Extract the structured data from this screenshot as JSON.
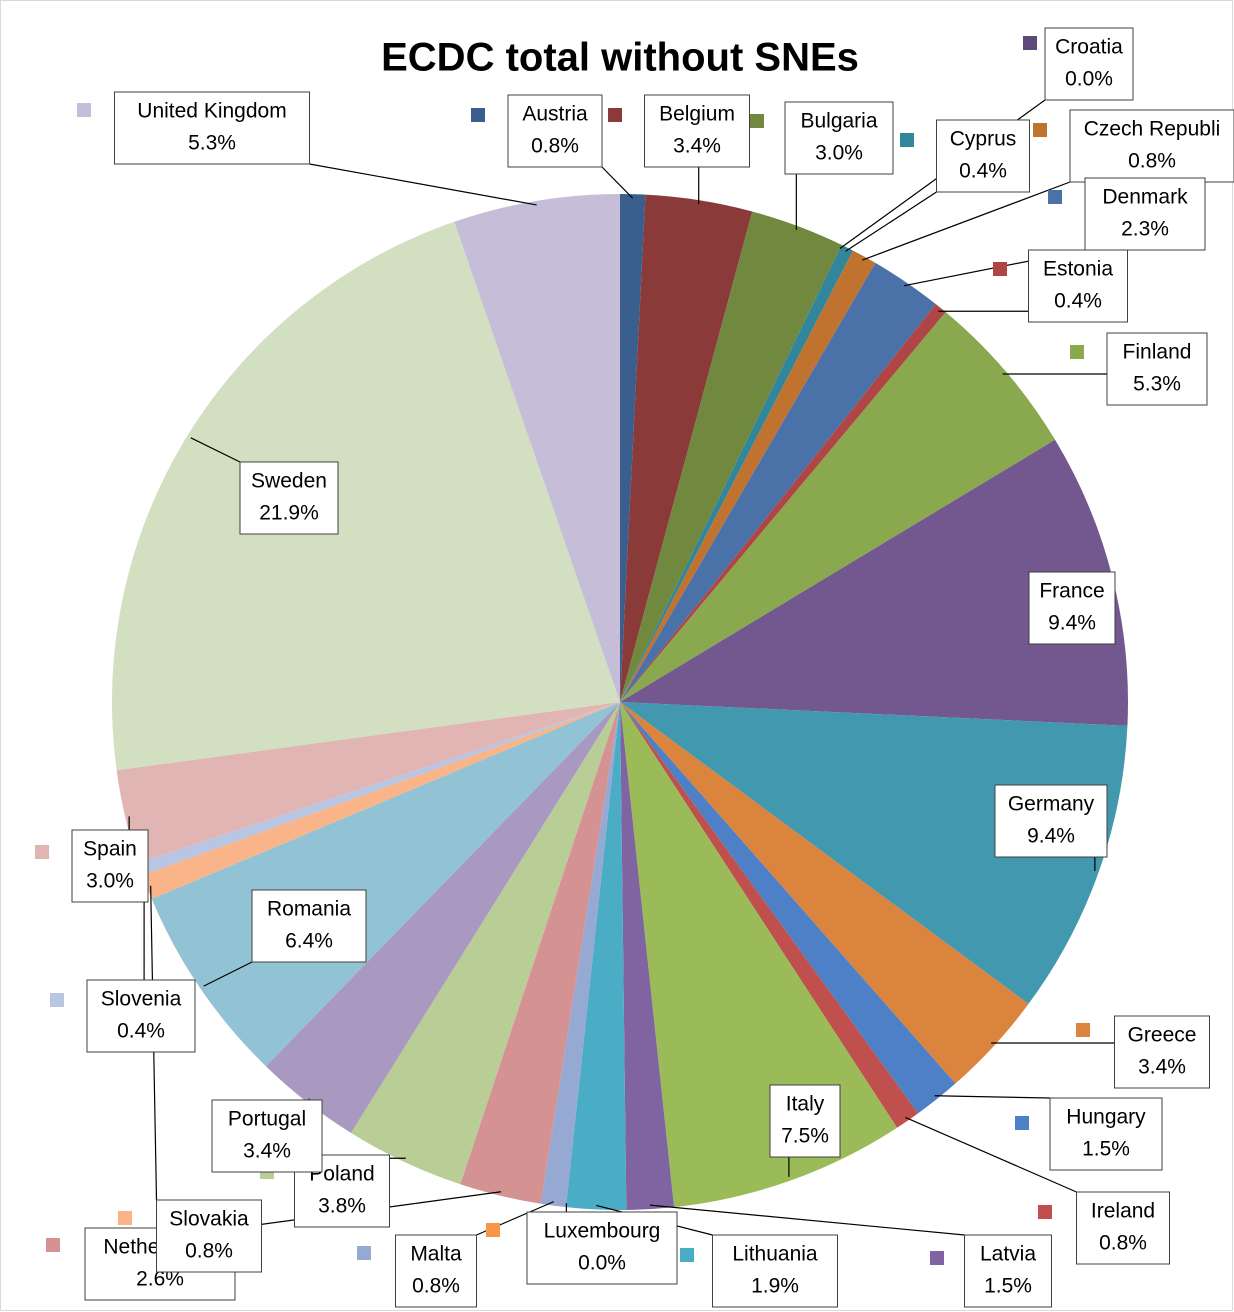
{
  "chart_data": {
    "type": "pie",
    "title": "ECDC total  without SNEs",
    "categories": [
      "Austria",
      "Belgium",
      "Bulgaria",
      "Croatia",
      "Cyprus",
      "Czech Republi",
      "Denmark",
      "Estonia",
      "Finland",
      "France",
      "Germany",
      "Greece",
      "Hungary",
      "Ireland",
      "Italy",
      "Latvia",
      "Lithuania",
      "Luxembourg",
      "Malta",
      "Netherlands",
      "Poland",
      "Portugal",
      "Romania",
      "Slovakia",
      "Slovenia",
      "Spain",
      "Sweden",
      "United Kingdom"
    ],
    "values": [
      0.8,
      3.4,
      3.0,
      0.0,
      0.4,
      0.8,
      2.3,
      0.4,
      5.3,
      9.4,
      9.4,
      3.4,
      1.5,
      0.8,
      7.5,
      1.5,
      1.9,
      0.0,
      0.8,
      2.6,
      3.8,
      3.4,
      6.4,
      0.8,
      0.4,
      3.0,
      21.9,
      5.3
    ],
    "value_labels": [
      "0.8%",
      "3.4%",
      "3.0%",
      "0.0%",
      "0.4%",
      "0.8%",
      "2.3%",
      "0.4%",
      "5.3%",
      "9.4%",
      "9.4%",
      "3.4%",
      "1.5%",
      "0.8%",
      "7.5%",
      "1.5%",
      "1.9%",
      "0.0%",
      "0.8%",
      "2.6%",
      "3.8%",
      "3.4%",
      "6.4%",
      "0.8%",
      "0.4%",
      "3.0%",
      "21.9%",
      "5.3%"
    ],
    "colors": [
      "#3a5f8f",
      "#8b3a3a",
      "#71893f",
      "#5c4a7a",
      "#31869b",
      "#c0722f",
      "#4a72a8",
      "#b04545",
      "#8aa84e",
      "#72588f",
      "#4198af",
      "#db843d",
      "#4d80c6",
      "#c0504d",
      "#9bbb59",
      "#8064a2",
      "#4bacc6",
      "#f79646",
      "#95a9d3",
      "#d49392",
      "#b9cd96",
      "#a998c0",
      "#92c3d5",
      "#f9b48a",
      "#b8c6e3",
      "#e0b5b4",
      "#d2dfc0",
      "#c6bdd8"
    ]
  }
}
